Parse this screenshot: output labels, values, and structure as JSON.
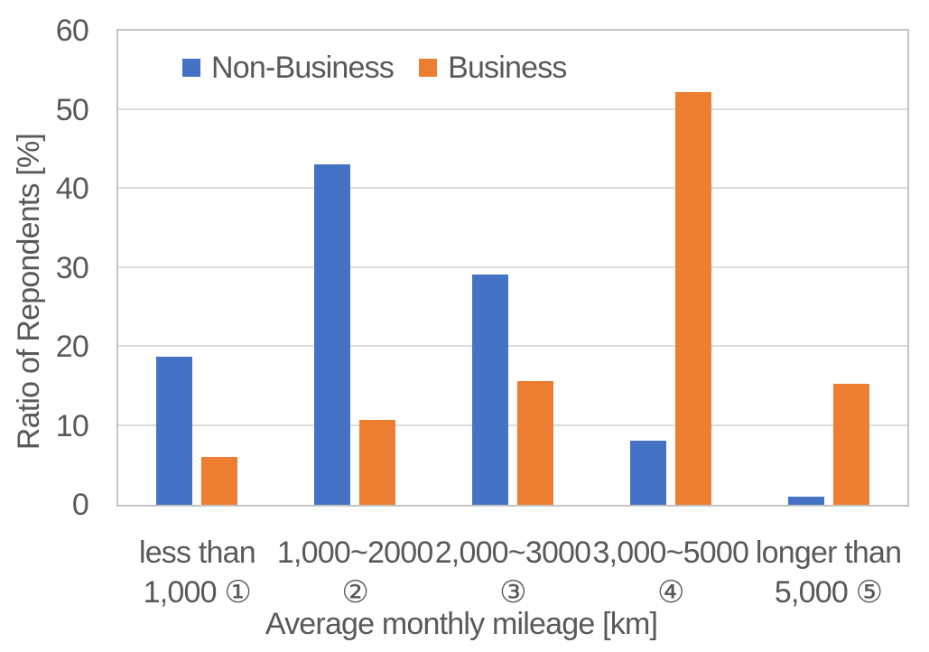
{
  "chart_data": {
    "type": "bar",
    "title": "",
    "xlabel": "Average monthly mileage [km]",
    "ylabel": "Ratio of Repondents [%]",
    "categories": [
      {
        "line1": "less than",
        "line2": "1,000 ①"
      },
      {
        "line1": "1,000~2000",
        "line2": "②"
      },
      {
        "line1": "2,000~3000",
        "line2": "③"
      },
      {
        "line1": "3,000~5000",
        "line2": "④"
      },
      {
        "line1": "longer than",
        "line2": "5,000 ⑤"
      }
    ],
    "series": [
      {
        "name": "Non-Business",
        "color": "#4472C4",
        "values": [
          18.7,
          43.1,
          29.2,
          8.1,
          1.0
        ]
      },
      {
        "name": "Business",
        "color": "#ED7D31",
        "values": [
          6.1,
          10.7,
          15.7,
          52.2,
          15.3
        ]
      }
    ],
    "ylim": [
      0,
      60
    ],
    "y_ticks": [
      0,
      10,
      20,
      30,
      40,
      50,
      60
    ],
    "grid": true,
    "legend_position": "top-left-inside",
    "background": "#FFFFFF",
    "text_color": "#595959",
    "grid_color": "#DCDCDC",
    "axis_color": "#C4C4C4"
  }
}
